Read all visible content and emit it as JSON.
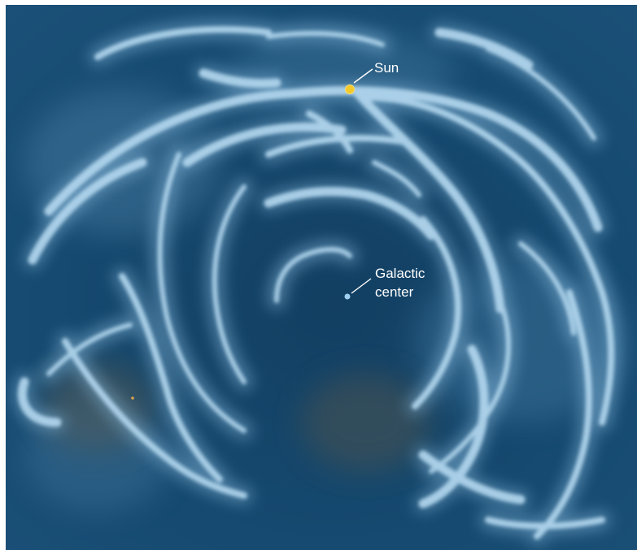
{
  "labels": {
    "sun": "Sun",
    "galactic_center_line1": "Galactic",
    "galactic_center_line2": "center"
  },
  "colors": {
    "background": "#14466c",
    "arm": "#b4d8ef",
    "sun_marker": "#f2c92c",
    "center_marker": "#9fd0ee",
    "label_text": "#ffffff"
  },
  "icons": {
    "sun_marker": "sun-dot-icon",
    "center_marker": "galactic-center-dot-icon"
  }
}
